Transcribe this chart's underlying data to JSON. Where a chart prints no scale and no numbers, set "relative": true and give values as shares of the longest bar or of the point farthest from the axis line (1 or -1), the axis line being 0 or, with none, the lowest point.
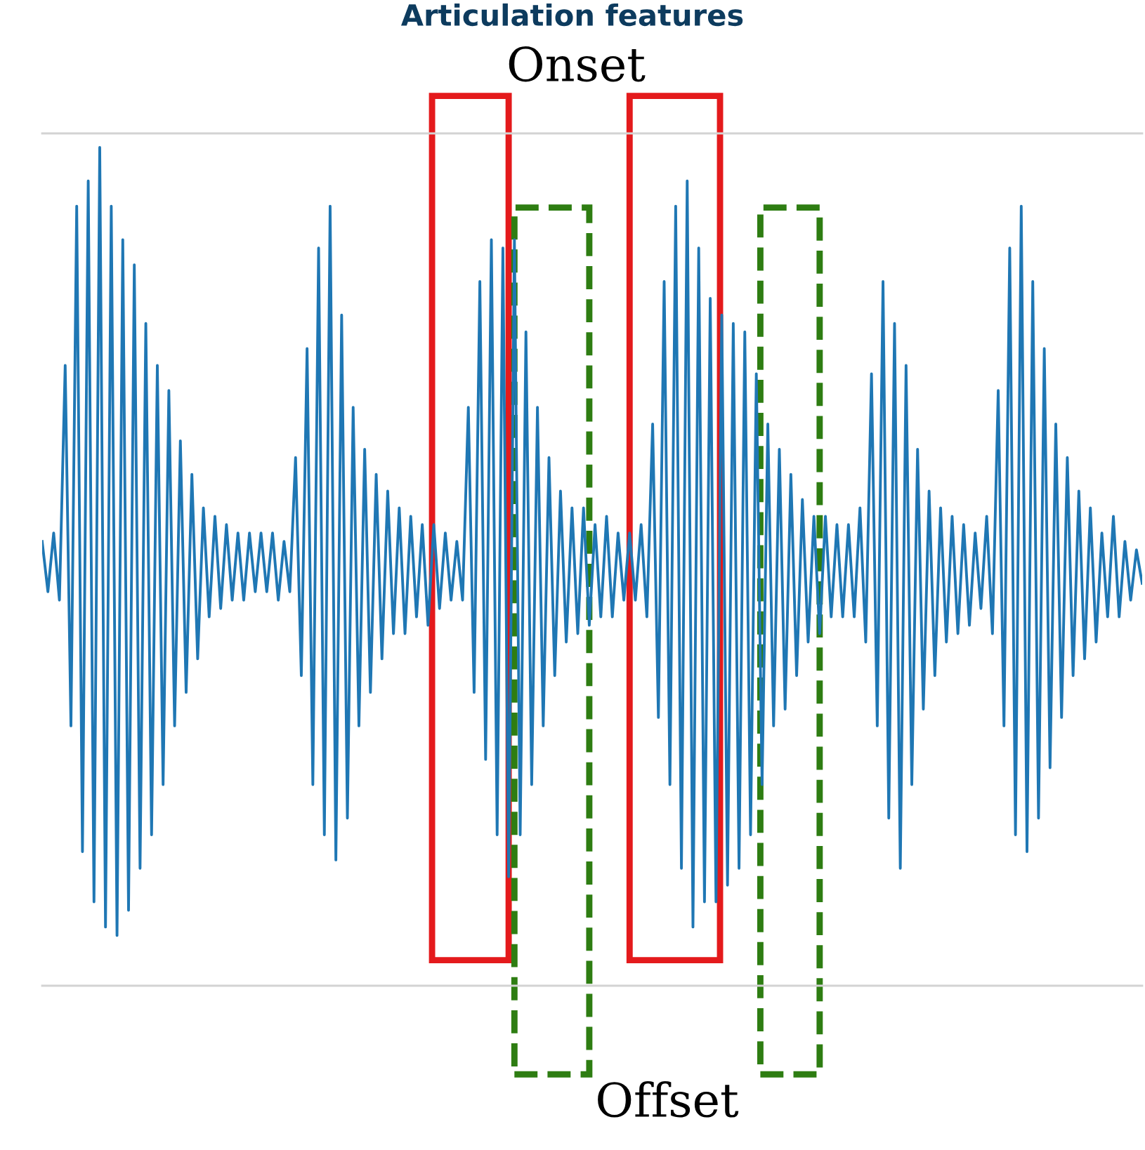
{
  "chart_data": {
    "type": "line",
    "title": "Articulation features",
    "relative": true,
    "categories": [
      null,
      null,
      null,
      null,
      null,
      null,
      null,
      null,
      null,
      null,
      null,
      null,
      null,
      null,
      null,
      null,
      null,
      null,
      null,
      null,
      null,
      null,
      null,
      null,
      null,
      null,
      null,
      null,
      null,
      null,
      null,
      null,
      null,
      null,
      null,
      null,
      null,
      null,
      null,
      null,
      null,
      null,
      null,
      null,
      null,
      null,
      null,
      null,
      null,
      null,
      null,
      null,
      null,
      null,
      null,
      null,
      null,
      null,
      null,
      null,
      null,
      null,
      null,
      null,
      null,
      null,
      null,
      null,
      null,
      null,
      null,
      null,
      null,
      null,
      null,
      null,
      null,
      null,
      null,
      null,
      null,
      null,
      null,
      null,
      null,
      null,
      null,
      null,
      null,
      null,
      null,
      null,
      null,
      null,
      null,
      null,
      null,
      null,
      null,
      null,
      null,
      null,
      null,
      null,
      null,
      null,
      null,
      null,
      null,
      null,
      null,
      null,
      null,
      null,
      null,
      null,
      null,
      null,
      null,
      null,
      null,
      null,
      null,
      null,
      null,
      null,
      null,
      null,
      null,
      null,
      null,
      null,
      null,
      null,
      null,
      null,
      null,
      null,
      null,
      null,
      null,
      null,
      null,
      null,
      null,
      null,
      null,
      null,
      null,
      null,
      null,
      null,
      null,
      null,
      null,
      null,
      null,
      null,
      null,
      null,
      null,
      null,
      null,
      null,
      null,
      null,
      null,
      null,
      null,
      null,
      null,
      null,
      null,
      null,
      null,
      null,
      null,
      null,
      null,
      null,
      null,
      null,
      null,
      null,
      null,
      null,
      null,
      null,
      null,
      null,
      null,
      null
    ],
    "series": [
      {
        "color": "#1f77b4",
        "values": [
          0.53,
          0.47,
          0.54,
          0.46,
          0.74,
          0.31,
          0.93,
          0.16,
          0.96,
          0.1,
          1.0,
          0.07,
          0.93,
          0.06,
          0.89,
          0.09,
          0.86,
          0.14,
          0.79,
          0.18,
          0.74,
          0.24,
          0.71,
          0.31,
          0.65,
          0.35,
          0.61,
          0.39,
          0.57,
          0.44,
          0.56,
          0.45,
          0.55,
          0.46,
          0.54,
          0.46,
          0.54,
          0.47,
          0.54,
          0.47,
          0.54,
          0.46,
          0.53,
          0.47,
          0.63,
          0.37,
          0.76,
          0.24,
          0.88,
          0.18,
          0.93,
          0.15,
          0.8,
          0.2,
          0.69,
          0.31,
          0.64,
          0.35,
          0.61,
          0.39,
          0.59,
          0.42,
          0.57,
          0.42,
          0.56,
          0.44,
          0.55,
          0.43,
          0.55,
          0.45,
          0.54,
          0.46,
          0.53,
          0.46,
          0.69,
          0.35,
          0.84,
          0.27,
          0.89,
          0.18,
          0.88,
          0.13,
          0.89,
          0.18,
          0.78,
          0.24,
          0.69,
          0.31,
          0.63,
          0.37,
          0.59,
          0.41,
          0.57,
          0.42,
          0.57,
          0.43,
          0.55,
          0.44,
          0.56,
          0.44,
          0.54,
          0.46,
          0.54,
          0.46,
          0.55,
          0.44,
          0.67,
          0.32,
          0.84,
          0.24,
          0.93,
          0.14,
          0.96,
          0.07,
          0.88,
          0.1,
          0.82,
          0.1,
          0.8,
          0.12,
          0.79,
          0.14,
          0.78,
          0.18,
          0.73,
          0.24,
          0.67,
          0.31,
          0.64,
          0.33,
          0.61,
          0.37,
          0.58,
          0.41,
          0.56,
          0.42,
          0.56,
          0.44,
          0.55,
          0.44,
          0.55,
          0.44,
          0.57,
          0.41,
          0.73,
          0.31,
          0.84,
          0.2,
          0.79,
          0.14,
          0.74,
          0.24,
          0.64,
          0.33,
          0.59,
          0.37,
          0.57,
          0.41,
          0.56,
          0.42,
          0.55,
          0.43,
          0.54,
          0.45,
          0.56,
          0.42,
          0.71,
          0.31,
          0.88,
          0.18,
          0.93,
          0.16,
          0.84,
          0.2,
          0.76,
          0.26,
          0.67,
          0.32,
          0.63,
          0.37,
          0.59,
          0.39,
          0.57,
          0.41,
          0.54,
          0.44,
          0.56,
          0.44,
          0.53,
          0.46,
          0.52,
          0.48
        ]
      }
    ],
    "annotations": [
      "Onset",
      "Offset"
    ]
  }
}
